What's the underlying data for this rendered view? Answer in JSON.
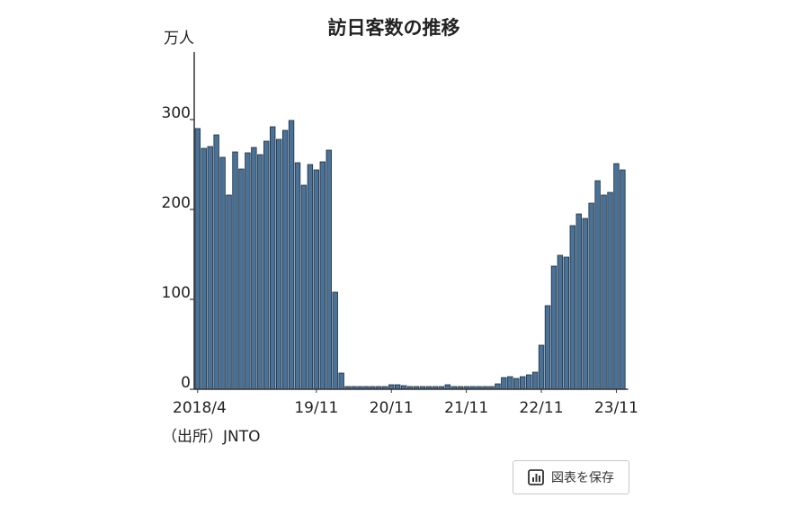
{
  "chart_data": {
    "type": "bar",
    "title": "訪日客数の推移",
    "ylabel": "万人",
    "source": "（出所）JNTO",
    "ylim": [
      0,
      375
    ],
    "yticks": [
      0,
      100,
      200,
      300
    ],
    "grid": false,
    "x_ticks": [
      {
        "index": 0,
        "label": "2018/4"
      },
      {
        "index": 19,
        "label": "19/11"
      },
      {
        "index": 31,
        "label": "20/11"
      },
      {
        "index": 43,
        "label": "21/11"
      },
      {
        "index": 55,
        "label": "22/11"
      },
      {
        "index": 67,
        "label": "23/11"
      }
    ],
    "series": [
      {
        "values": [
          290,
          268,
          270,
          283,
          258,
          216,
          264,
          245,
          263,
          269,
          261,
          276,
          292,
          278,
          288,
          299,
          252,
          227,
          250,
          244,
          253,
          266,
          108,
          18,
          3,
          3,
          3,
          3,
          3,
          3,
          3,
          5,
          5,
          4,
          3,
          3,
          3,
          3,
          3,
          3,
          5,
          3,
          3,
          3,
          3,
          3,
          3,
          3,
          6,
          13,
          14,
          12,
          14,
          16,
          19,
          49,
          93,
          137,
          149,
          147,
          182,
          195,
          190,
          207,
          232,
          216,
          219,
          251,
          244
        ]
      }
    ]
  },
  "toolbar": {
    "save_label": "図表を保存",
    "save_icon": "bar-chart-icon"
  },
  "colors": {
    "bar_fill": "#4a7196",
    "bar_stroke": "#1c2f42",
    "axis": "#333333",
    "text": "#222222"
  }
}
